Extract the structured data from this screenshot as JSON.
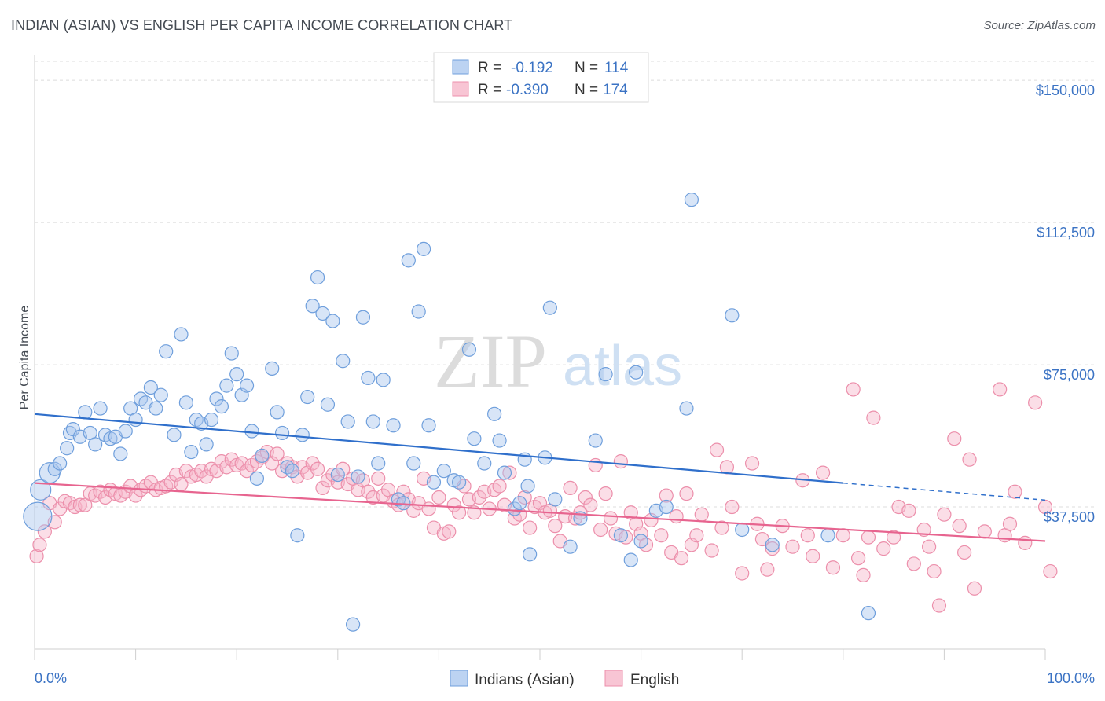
{
  "title": "INDIAN (ASIAN) VS ENGLISH PER CAPITA INCOME CORRELATION CHART",
  "source": "Source: ZipAtlas.com",
  "watermark": {
    "zip": "ZIP",
    "atlas": "atlas"
  },
  "colors": {
    "blue_fill": "#a9c6ee",
    "blue_stroke": "#6f9fdc",
    "blue_line": "#2f6fcb",
    "pink_fill": "#f6b6c9",
    "pink_stroke": "#ec8fab",
    "pink_line": "#e7648f",
    "tick_blue": "#3b73c4"
  },
  "legend": {
    "rows": [
      {
        "r_label": "R =",
        "r_value": "-0.192",
        "n_label": "N =",
        "n_value": "114",
        "series": "blue"
      },
      {
        "r_label": "R =",
        "r_value": "-0.390",
        "n_label": "N =",
        "n_value": "174",
        "series": "pink"
      }
    ]
  },
  "bottom_legend": [
    "Indians (Asian)",
    "English"
  ],
  "chart_data": {
    "type": "scatter",
    "title": "INDIAN (ASIAN) VS ENGLISH PER CAPITA INCOME CORRELATION CHART",
    "xlabel": "",
    "ylabel": "Per Capita Income",
    "xlim": [
      0,
      100
    ],
    "ylim": [
      0,
      155000
    ],
    "x_tick_labels": [
      "0.0%",
      "100.0%"
    ],
    "y_ticks": [
      37500,
      75000,
      112500,
      150000
    ],
    "y_tick_labels": [
      "$37,500",
      "$75,000",
      "$112,500",
      "$150,000"
    ],
    "grid": "horizontal dashed",
    "legend_position": "top-center",
    "series": [
      {
        "name": "Indians (Asian)",
        "color": "#a9c6ee",
        "trend": {
          "x": [
            0,
            80,
            100
          ],
          "y": [
            62000,
            43800,
            39300
          ],
          "solid_until_x": 80
        },
        "points": [
          [
            0.3,
            35000
          ],
          [
            0.6,
            42000
          ],
          [
            1.5,
            46500
          ],
          [
            2.0,
            47500
          ],
          [
            2.5,
            49000
          ],
          [
            3.2,
            53000
          ],
          [
            3.5,
            57000
          ],
          [
            3.8,
            58000
          ],
          [
            4.5,
            56000
          ],
          [
            5.0,
            62500
          ],
          [
            5.5,
            57000
          ],
          [
            6.0,
            54000
          ],
          [
            6.5,
            63500
          ],
          [
            7.0,
            56500
          ],
          [
            7.5,
            55500
          ],
          [
            8.0,
            56000
          ],
          [
            8.5,
            51500
          ],
          [
            9.0,
            57500
          ],
          [
            9.5,
            63500
          ],
          [
            10.0,
            60500
          ],
          [
            10.5,
            66000
          ],
          [
            11.0,
            65000
          ],
          [
            11.5,
            69000
          ],
          [
            12.0,
            63500
          ],
          [
            12.5,
            67000
          ],
          [
            13.0,
            78500
          ],
          [
            13.8,
            56500
          ],
          [
            14.5,
            83000
          ],
          [
            15.0,
            65000
          ],
          [
            15.5,
            52000
          ],
          [
            16.0,
            60500
          ],
          [
            16.5,
            59500
          ],
          [
            17.0,
            54000
          ],
          [
            17.5,
            60500
          ],
          [
            18.0,
            66000
          ],
          [
            18.5,
            64000
          ],
          [
            19.0,
            69500
          ],
          [
            19.5,
            78000
          ],
          [
            20.0,
            72500
          ],
          [
            20.5,
            67000
          ],
          [
            21.0,
            69500
          ],
          [
            21.5,
            57500
          ],
          [
            22.0,
            45000
          ],
          [
            22.5,
            51000
          ],
          [
            23.5,
            74000
          ],
          [
            24.0,
            62500
          ],
          [
            24.5,
            57000
          ],
          [
            25.0,
            48000
          ],
          [
            25.5,
            47000
          ],
          [
            26.0,
            30000
          ],
          [
            26.5,
            56500
          ],
          [
            27.0,
            66500
          ],
          [
            27.5,
            90500
          ],
          [
            28.0,
            98000
          ],
          [
            28.5,
            88500
          ],
          [
            29.0,
            64500
          ],
          [
            29.5,
            86500
          ],
          [
            30.0,
            46000
          ],
          [
            30.5,
            76000
          ],
          [
            31.0,
            60000
          ],
          [
            31.5,
            6500
          ],
          [
            32.0,
            45500
          ],
          [
            32.5,
            87500
          ],
          [
            33.0,
            71500
          ],
          [
            33.5,
            60000
          ],
          [
            34.0,
            49000
          ],
          [
            34.5,
            71000
          ],
          [
            35.5,
            59000
          ],
          [
            36.0,
            39500
          ],
          [
            36.5,
            38500
          ],
          [
            37.0,
            102500
          ],
          [
            37.5,
            49000
          ],
          [
            38.0,
            89000
          ],
          [
            38.5,
            105500
          ],
          [
            39.0,
            59000
          ],
          [
            39.5,
            44000
          ],
          [
            40.5,
            47000
          ],
          [
            41.5,
            44500
          ],
          [
            42.0,
            44000
          ],
          [
            43.0,
            79000
          ],
          [
            43.5,
            55500
          ],
          [
            44.5,
            49000
          ],
          [
            45.5,
            62000
          ],
          [
            46.0,
            55000
          ],
          [
            46.5,
            46500
          ],
          [
            47.5,
            37000
          ],
          [
            48.0,
            38500
          ],
          [
            48.5,
            50000
          ],
          [
            48.8,
            43000
          ],
          [
            49.0,
            25000
          ],
          [
            50.5,
            50500
          ],
          [
            51.0,
            90000
          ],
          [
            51.5,
            39500
          ],
          [
            53.0,
            27000
          ],
          [
            54.0,
            34500
          ],
          [
            55.5,
            55000
          ],
          [
            56.5,
            72500
          ],
          [
            58.0,
            30000
          ],
          [
            59.0,
            23500
          ],
          [
            59.5,
            73000
          ],
          [
            60.0,
            28500
          ],
          [
            61.5,
            36500
          ],
          [
            62.5,
            37500
          ],
          [
            64.5,
            63500
          ],
          [
            65.0,
            118500
          ],
          [
            69.0,
            88000
          ],
          [
            70.0,
            31500
          ],
          [
            73.0,
            27500
          ],
          [
            78.5,
            30000
          ],
          [
            82.5,
            9500
          ]
        ]
      },
      {
        "name": "English",
        "color": "#f6b6c9",
        "trend": {
          "x": [
            0,
            100
          ],
          "y": [
            43800,
            28500
          ]
        },
        "points": [
          [
            0.2,
            24500
          ],
          [
            0.5,
            27500
          ],
          [
            1.0,
            31000
          ],
          [
            1.5,
            38500
          ],
          [
            2.0,
            33500
          ],
          [
            2.5,
            37000
          ],
          [
            3.0,
            39000
          ],
          [
            3.5,
            38500
          ],
          [
            4.0,
            37500
          ],
          [
            4.5,
            38000
          ],
          [
            5.0,
            38000
          ],
          [
            5.5,
            41000
          ],
          [
            6.0,
            40500
          ],
          [
            6.5,
            41500
          ],
          [
            7.0,
            40000
          ],
          [
            7.5,
            42000
          ],
          [
            8.0,
            41000
          ],
          [
            8.5,
            40500
          ],
          [
            9.0,
            41500
          ],
          [
            9.5,
            43000
          ],
          [
            10.0,
            40500
          ],
          [
            10.5,
            42000
          ],
          [
            11.0,
            43000
          ],
          [
            11.5,
            44000
          ],
          [
            12.0,
            42000
          ],
          [
            12.5,
            42500
          ],
          [
            13.0,
            43000
          ],
          [
            13.5,
            44000
          ],
          [
            14.0,
            46000
          ],
          [
            14.5,
            43500
          ],
          [
            15.0,
            47000
          ],
          [
            15.5,
            45500
          ],
          [
            16.0,
            46000
          ],
          [
            16.5,
            47000
          ],
          [
            17.0,
            45500
          ],
          [
            17.5,
            47500
          ],
          [
            18.0,
            47000
          ],
          [
            18.5,
            49500
          ],
          [
            19.0,
            48000
          ],
          [
            19.5,
            50000
          ],
          [
            20.0,
            48500
          ],
          [
            20.5,
            49000
          ],
          [
            21.0,
            47000
          ],
          [
            21.5,
            48500
          ],
          [
            22.0,
            49500
          ],
          [
            22.5,
            50500
          ],
          [
            23.0,
            52000
          ],
          [
            23.5,
            49000
          ],
          [
            24.0,
            51500
          ],
          [
            24.5,
            47000
          ],
          [
            25.0,
            49000
          ],
          [
            25.5,
            48000
          ],
          [
            26.0,
            45500
          ],
          [
            26.5,
            48000
          ],
          [
            27.0,
            46500
          ],
          [
            27.5,
            49000
          ],
          [
            28.0,
            47500
          ],
          [
            28.5,
            42500
          ],
          [
            29.0,
            44500
          ],
          [
            29.5,
            46000
          ],
          [
            30.0,
            44000
          ],
          [
            30.5,
            47500
          ],
          [
            31.0,
            43500
          ],
          [
            31.5,
            45000
          ],
          [
            32.0,
            42000
          ],
          [
            32.5,
            44500
          ],
          [
            33.0,
            41500
          ],
          [
            33.5,
            40000
          ],
          [
            34.0,
            45000
          ],
          [
            34.5,
            40500
          ],
          [
            35.0,
            42000
          ],
          [
            35.5,
            39000
          ],
          [
            36.0,
            38000
          ],
          [
            36.5,
            41500
          ],
          [
            37.0,
            39500
          ],
          [
            37.5,
            36500
          ],
          [
            38.0,
            38500
          ],
          [
            38.5,
            45000
          ],
          [
            39.0,
            37000
          ],
          [
            39.5,
            32000
          ],
          [
            40.0,
            40000
          ],
          [
            40.5,
            30500
          ],
          [
            41.0,
            31000
          ],
          [
            41.5,
            38000
          ],
          [
            42.0,
            36000
          ],
          [
            42.5,
            43000
          ],
          [
            43.0,
            39500
          ],
          [
            43.5,
            36000
          ],
          [
            44.0,
            40000
          ],
          [
            44.5,
            41500
          ],
          [
            45.0,
            37000
          ],
          [
            45.5,
            42000
          ],
          [
            46.0,
            43000
          ],
          [
            46.5,
            38000
          ],
          [
            47.0,
            46500
          ],
          [
            47.5,
            34500
          ],
          [
            48.0,
            35500
          ],
          [
            48.5,
            40000
          ],
          [
            49.0,
            32000
          ],
          [
            49.5,
            37500
          ],
          [
            50.0,
            38500
          ],
          [
            50.5,
            36000
          ],
          [
            51.0,
            36500
          ],
          [
            51.5,
            32500
          ],
          [
            52.0,
            28500
          ],
          [
            52.5,
            35000
          ],
          [
            53.0,
            42500
          ],
          [
            53.5,
            34500
          ],
          [
            54.0,
            36000
          ],
          [
            54.5,
            40000
          ],
          [
            55.0,
            38000
          ],
          [
            55.5,
            48500
          ],
          [
            56.0,
            31500
          ],
          [
            56.5,
            41000
          ],
          [
            57.0,
            34500
          ],
          [
            57.5,
            30500
          ],
          [
            58.0,
            49500
          ],
          [
            58.5,
            29500
          ],
          [
            59.0,
            36000
          ],
          [
            59.5,
            33000
          ],
          [
            60.0,
            30500
          ],
          [
            60.5,
            27500
          ],
          [
            61.0,
            34000
          ],
          [
            62.0,
            30000
          ],
          [
            62.5,
            40500
          ],
          [
            63.0,
            25500
          ],
          [
            63.5,
            35000
          ],
          [
            64.0,
            24000
          ],
          [
            64.5,
            41000
          ],
          [
            65.0,
            27500
          ],
          [
            65.5,
            30000
          ],
          [
            66.0,
            35500
          ],
          [
            67.0,
            26000
          ],
          [
            67.5,
            52500
          ],
          [
            68.0,
            32000
          ],
          [
            68.5,
            48000
          ],
          [
            69.0,
            37500
          ],
          [
            70.0,
            20000
          ],
          [
            71.0,
            49000
          ],
          [
            71.5,
            33000
          ],
          [
            72.0,
            29000
          ],
          [
            72.5,
            21000
          ],
          [
            73.0,
            26500
          ],
          [
            74.0,
            32500
          ],
          [
            75.0,
            27000
          ],
          [
            76.0,
            44500
          ],
          [
            76.5,
            30000
          ],
          [
            77.0,
            24500
          ],
          [
            78.0,
            46500
          ],
          [
            79.0,
            21500
          ],
          [
            80.0,
            30000
          ],
          [
            81.0,
            68500
          ],
          [
            81.5,
            24000
          ],
          [
            82.0,
            19500
          ],
          [
            82.5,
            29500
          ],
          [
            83.0,
            61000
          ],
          [
            84.0,
            26500
          ],
          [
            85.0,
            29500
          ],
          [
            85.5,
            37500
          ],
          [
            86.5,
            36500
          ],
          [
            87.0,
            22500
          ],
          [
            88.0,
            31500
          ],
          [
            88.5,
            27000
          ],
          [
            89.0,
            20500
          ],
          [
            89.5,
            11500
          ],
          [
            90.0,
            35500
          ],
          [
            91.0,
            55500
          ],
          [
            91.5,
            32500
          ],
          [
            92.0,
            25500
          ],
          [
            92.5,
            50000
          ],
          [
            93.0,
            16000
          ],
          [
            94.0,
            31000
          ],
          [
            95.5,
            68500
          ],
          [
            96.0,
            30000
          ],
          [
            96.5,
            33000
          ],
          [
            97.0,
            41500
          ],
          [
            98.0,
            28000
          ],
          [
            99.0,
            65000
          ],
          [
            100.0,
            37500
          ],
          [
            100.5,
            20500
          ]
        ]
      }
    ]
  }
}
